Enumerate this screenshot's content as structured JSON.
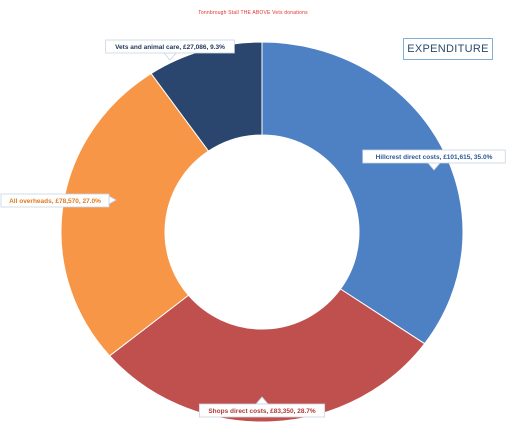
{
  "page": {
    "top_caption": "Tonnbrough Stall THE ABOVE Vets donations",
    "legend_label": "EXPENDITURE"
  },
  "colors": {
    "hillcrest": "#4e81c3",
    "shops": "#c0504d",
    "overheads": "#f79646",
    "vets": "#2a466e"
  },
  "chart_data": {
    "type": "pie",
    "title": "",
    "donut": true,
    "slices": [
      {
        "label": "Hillcrest direct costs, £101,615, 35.0%",
        "value": 35.0,
        "color": "#4e81c3"
      },
      {
        "label": "Shops direct costs, £83,350, 28.7%",
        "value": 28.7,
        "color": "#c0504d"
      },
      {
        "label": "All overheads, £78,570, 27.0%",
        "value": 27.0,
        "color": "#f79646"
      },
      {
        "label": "Vets and animal care, £27,086, 9.3%",
        "value": 9.3,
        "color": "#2a466e"
      }
    ]
  }
}
